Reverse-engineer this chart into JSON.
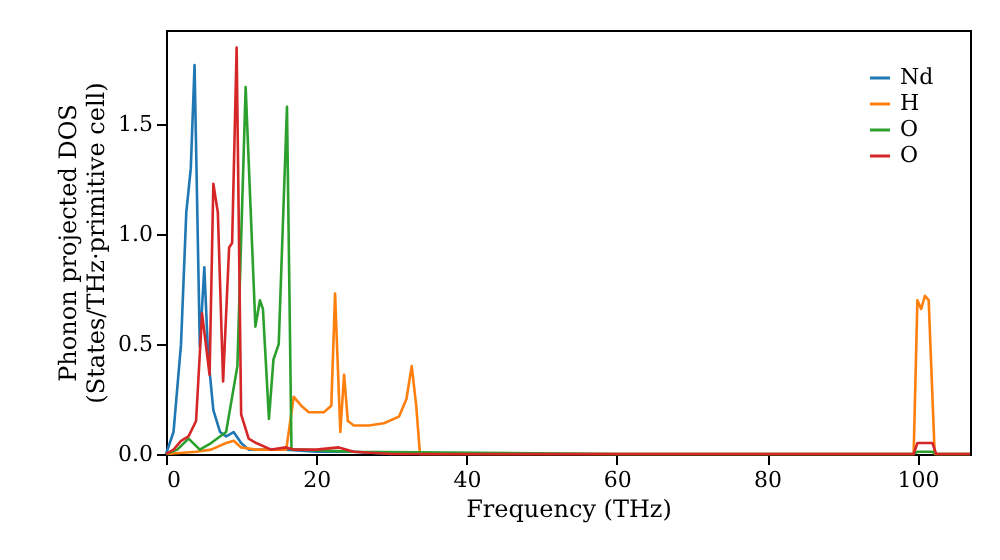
{
  "chart_data": {
    "type": "line",
    "xlabel": "Frequency (THz)",
    "ylabel": "Phonon projected DOS\n(States/THz·primitive cell)",
    "xlim": [
      0,
      107
    ],
    "ylim": [
      0,
      1.93
    ],
    "xticks": [
      0,
      20,
      40,
      60,
      80,
      100
    ],
    "yticks": [
      {
        "value": 0,
        "label": "0.0"
      },
      {
        "value": 0.5,
        "label": "0.5"
      },
      {
        "value": 1,
        "label": "1.0"
      },
      {
        "value": 1.5,
        "label": "1.5"
      }
    ],
    "legend": "top right",
    "grid": false,
    "series": [
      {
        "name": "Nd",
        "color": "#1f77b4",
        "x": [
          0,
          1,
          2,
          2.7,
          3.3,
          3.8,
          4.5,
          5.1,
          5.6,
          6.3,
          7.2,
          8,
          9,
          10,
          11,
          13,
          16,
          20,
          25,
          30
        ],
        "values": [
          0,
          0.1,
          0.5,
          1.1,
          1.3,
          1.77,
          0.49,
          0.85,
          0.45,
          0.2,
          0.1,
          0.08,
          0.1,
          0.05,
          0.02,
          0.02,
          0.02,
          0.01,
          0.01,
          0
        ]
      },
      {
        "name": "H",
        "color": "#ff7f0e",
        "x": [
          0,
          4,
          6,
          8,
          9,
          10,
          12,
          16,
          17,
          18,
          19,
          21,
          22,
          22.5,
          23.2,
          23.7,
          24.2,
          25,
          27,
          29,
          31,
          32,
          32.7,
          33.3,
          33.8,
          60,
          99.5,
          100,
          100.5,
          101,
          101.5,
          102.3,
          107
        ],
        "values": [
          0,
          0.01,
          0.02,
          0.05,
          0.06,
          0.03,
          0.02,
          0.02,
          0.26,
          0.22,
          0.19,
          0.19,
          0.22,
          0.73,
          0.1,
          0.36,
          0.15,
          0.13,
          0.13,
          0.14,
          0.17,
          0.25,
          0.4,
          0.22,
          0,
          0,
          0,
          0.7,
          0.66,
          0.72,
          0.7,
          0,
          0
        ]
      },
      {
        "name": "O",
        "color": "#2ca02c",
        "x": [
          0,
          1.5,
          3,
          4.5,
          6,
          8,
          9.5,
          10.6,
          11.9,
          12.5,
          12.9,
          13.7,
          14.3,
          15.0,
          16.1,
          16.7,
          18,
          25,
          60,
          99.5,
          100,
          102,
          102.5,
          107
        ],
        "values": [
          0,
          0.02,
          0.07,
          0.02,
          0.05,
          0.1,
          0.4,
          1.67,
          0.58,
          0.7,
          0.66,
          0.16,
          0.43,
          0.5,
          1.58,
          0.02,
          0.02,
          0.01,
          0,
          0,
          0.01,
          0.01,
          0,
          0
        ]
      },
      {
        "name": "O",
        "color": "#d62728",
        "x": [
          0,
          1,
          2,
          3,
          4,
          4.8,
          5.8,
          6.3,
          6.9,
          7.6,
          8.4,
          8.8,
          9.4,
          10.0,
          11,
          12,
          14,
          16,
          17,
          20,
          23,
          25,
          30,
          60,
          99.5,
          100,
          102,
          102.5,
          107
        ],
        "values": [
          0,
          0.02,
          0.06,
          0.08,
          0.15,
          0.64,
          0.36,
          1.23,
          1.1,
          0.33,
          0.94,
          0.96,
          1.85,
          0.18,
          0.07,
          0.05,
          0.02,
          0.03,
          0.02,
          0.02,
          0.03,
          0.01,
          0,
          0,
          0,
          0.05,
          0.05,
          0,
          0
        ]
      }
    ]
  }
}
